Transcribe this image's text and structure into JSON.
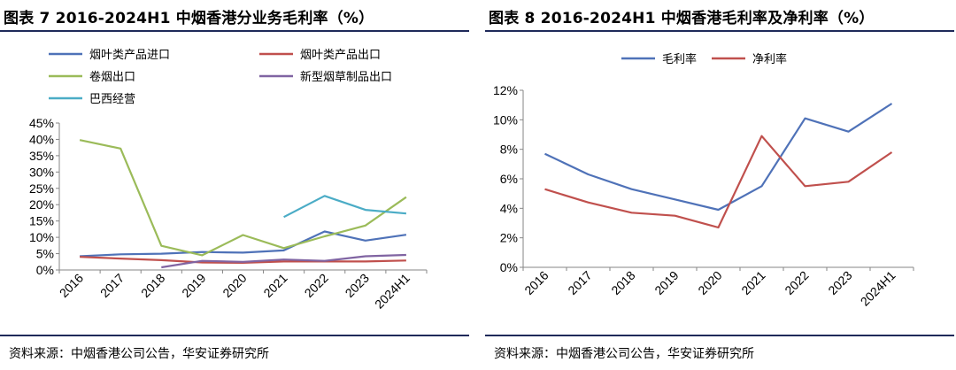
{
  "left": {
    "title": "图表 7 2016-2024H1 中烟香港分业务毛利率（%）",
    "source": "资料来源：中烟香港公司公告，华安证券研究所"
  },
  "right": {
    "title": "图表 8 2016-2024H1 中烟香港毛利率及净利率（%）",
    "source": "资料来源：中烟香港公司公告，华安证券研究所"
  },
  "chart_data": [
    {
      "type": "line",
      "title": "图表 7 2016-2024H1 中烟香港分业务毛利率（%）",
      "xlabel": "",
      "ylabel": "",
      "x": [
        "2016",
        "2017",
        "2018",
        "2019",
        "2020",
        "2021",
        "2022",
        "2023",
        "2024H1"
      ],
      "ylim": [
        0,
        45
      ],
      "yticks": [
        "0%",
        "5%",
        "10%",
        "15%",
        "20%",
        "25%",
        "30%",
        "35%",
        "40%",
        "45%"
      ],
      "grid": false,
      "legend": "top",
      "series": [
        {
          "name": "烟叶类产品进口",
          "color": "#4f72b8",
          "values": [
            4.2,
            4.8,
            5.0,
            5.5,
            5.3,
            6.0,
            11.8,
            9.0,
            10.8
          ]
        },
        {
          "name": "烟叶类产品出口",
          "color": "#c0504d",
          "values": [
            4.0,
            3.5,
            3.0,
            2.3,
            2.2,
            2.6,
            2.6,
            2.6,
            2.9
          ]
        },
        {
          "name": "卷烟出口",
          "color": "#9bbb59",
          "values": [
            39.8,
            37.2,
            7.4,
            4.5,
            10.7,
            6.7,
            10.3,
            13.6,
            22.3
          ]
        },
        {
          "name": "新型烟草制品出口",
          "color": "#8064a2",
          "values": [
            null,
            null,
            0.8,
            2.8,
            2.5,
            3.2,
            2.8,
            4.2,
            4.6
          ]
        },
        {
          "name": "巴西经营",
          "color": "#4bacc6",
          "values": [
            null,
            null,
            null,
            null,
            null,
            16.2,
            22.7,
            18.4,
            17.3
          ]
        }
      ]
    },
    {
      "type": "line",
      "title": "图表 8 2016-2024H1 中烟香港毛利率及净利率（%）",
      "xlabel": "",
      "ylabel": "",
      "x": [
        "2016",
        "2017",
        "2018",
        "2019",
        "2020",
        "2021",
        "2022",
        "2023",
        "2024H1"
      ],
      "ylim": [
        0,
        12
      ],
      "yticks": [
        "0%",
        "2%",
        "4%",
        "6%",
        "8%",
        "10%",
        "12%"
      ],
      "grid": false,
      "legend": "top",
      "series": [
        {
          "name": "毛利率",
          "color": "#4f72b8",
          "values": [
            7.7,
            6.3,
            5.3,
            4.6,
            3.9,
            5.5,
            10.1,
            9.2,
            11.1
          ]
        },
        {
          "name": "净利率",
          "color": "#c0504d",
          "values": [
            5.3,
            4.4,
            3.7,
            3.5,
            2.7,
            8.9,
            5.5,
            5.8,
            7.8
          ]
        }
      ]
    }
  ]
}
